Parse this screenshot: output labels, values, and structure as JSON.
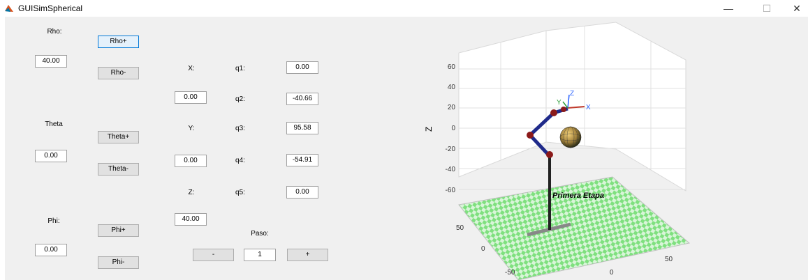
{
  "window": {
    "title": "GUISimSpherical",
    "minimize": "—",
    "maximize": "☐",
    "close": "✕"
  },
  "spherical": {
    "rho_label": "Rho:",
    "rho_value": "40.00",
    "rho_plus": "Rho+",
    "rho_minus": "Rho-",
    "theta_label": "Theta",
    "theta_value": "0.00",
    "theta_plus": "Theta+",
    "theta_minus": "Theta-",
    "phi_label": "Phi:",
    "phi_value": "0.00",
    "phi_plus": "Phi+",
    "phi_minus": "Phi-"
  },
  "cartesian": {
    "x_label": "X:",
    "x_value": "0.00",
    "y_label": "Y:",
    "y_value": "0.00",
    "z_label": "Z:",
    "z_value": "40.00"
  },
  "joints": [
    {
      "label": "q1:",
      "value": "0.00"
    },
    {
      "label": "q2:",
      "value": "-40.66"
    },
    {
      "label": "q3:",
      "value": "95.58"
    },
    {
      "label": "q4:",
      "value": "-54.91"
    },
    {
      "label": "q5:",
      "value": "0.00"
    }
  ],
  "step": {
    "label": "Paso:",
    "value": "1",
    "minus": "-",
    "plus": "+"
  },
  "plot": {
    "zlabel": "Z",
    "z_ticks": [
      "60",
      "40",
      "20",
      "0",
      "-20",
      "-40",
      "-60"
    ],
    "y_ticks": [
      "50",
      "0",
      "-50"
    ],
    "x_ticks": [
      "0",
      "50"
    ],
    "annotation": "Primera Etapa",
    "frame_labels": {
      "x": "X",
      "y": "Y",
      "z": "Z"
    },
    "colors": {
      "floor_a": "#7fe07f",
      "floor_b": "#d8f5d8",
      "link": "#1f2a8a",
      "joint": "#8b1a1a",
      "base": "#222222"
    }
  }
}
